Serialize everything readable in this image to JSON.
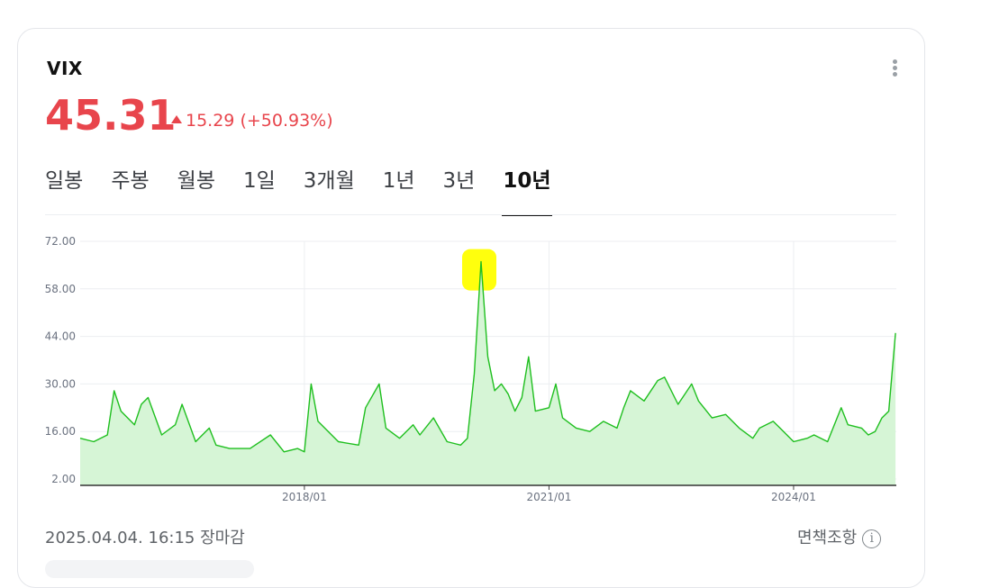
{
  "header": {
    "ticker": "VIX",
    "price": "45.31",
    "change": "15.29",
    "change_pct": "(+50.93%)",
    "menu_icon": "kebab-menu-icon"
  },
  "tabs": [
    {
      "label": "일봉",
      "active": false
    },
    {
      "label": "주봉",
      "active": false
    },
    {
      "label": "월봉",
      "active": false
    },
    {
      "label": "1일",
      "active": false
    },
    {
      "label": "3개월",
      "active": false
    },
    {
      "label": "1년",
      "active": false
    },
    {
      "label": "3년",
      "active": false
    },
    {
      "label": "10년",
      "active": true
    }
  ],
  "footer": {
    "timestamp": "2025.04.04. 16:15 장마감",
    "disclaimer": "면책조항",
    "info_icon": "i"
  },
  "colors": {
    "price_up": "#e8454c",
    "line": "#1fbf1f",
    "area": "#d6f5d6",
    "highlight": "#ffff00"
  },
  "chart_data": {
    "type": "area",
    "ylim": [
      2,
      72
    ],
    "yticks": [
      "72.00",
      "58.00",
      "44.00",
      "30.00",
      "16.00",
      "2.00"
    ],
    "xticks": [
      "2018/01",
      "2021/01",
      "2024/01"
    ],
    "grid": true,
    "highlight_point": {
      "x": "2020/03",
      "y": 66
    },
    "series": [
      {
        "x": [
          "2015/04",
          "2015/06",
          "2015/08",
          "2015/09",
          "2015/10",
          "2015/12",
          "2016/01",
          "2016/02",
          "2016/04",
          "2016/06",
          "2016/07",
          "2016/09",
          "2016/11",
          "2016/12",
          "2017/02",
          "2017/05",
          "2017/08",
          "2017/10",
          "2017/12",
          "2018/01",
          "2018/02",
          "2018/03",
          "2018/04",
          "2018/06",
          "2018/09",
          "2018/10",
          "2018/12",
          "2019/01",
          "2019/03",
          "2019/05",
          "2019/06",
          "2019/08",
          "2019/10",
          "2019/12",
          "2020/01",
          "2020/02",
          "2020/03",
          "2020/04",
          "2020/05",
          "2020/06",
          "2020/07",
          "2020/08",
          "2020/09",
          "2020/10",
          "2020/11",
          "2021/01",
          "2021/02",
          "2021/03",
          "2021/05",
          "2021/07",
          "2021/09",
          "2021/11",
          "2021/12",
          "2022/01",
          "2022/03",
          "2022/05",
          "2022/06",
          "2022/08",
          "2022/10",
          "2022/11",
          "2023/01",
          "2023/03",
          "2023/05",
          "2023/07",
          "2023/08",
          "2023/10",
          "2023/11",
          "2024/01",
          "2024/03",
          "2024/04",
          "2024/06",
          "2024/08",
          "2024/09",
          "2024/11",
          "2024/12",
          "2025/01",
          "2025/02",
          "2025/03",
          "2025/04"
        ],
        "values": [
          14,
          13,
          15,
          28,
          22,
          18,
          24,
          26,
          15,
          18,
          24,
          13,
          17,
          12,
          11,
          11,
          15,
          10,
          11,
          10,
          30,
          19,
          17,
          13,
          12,
          23,
          30,
          17,
          14,
          18,
          15,
          20,
          13,
          12,
          14,
          33,
          66,
          38,
          28,
          30,
          27,
          22,
          26,
          38,
          22,
          23,
          30,
          20,
          17,
          16,
          19,
          17,
          23,
          28,
          25,
          31,
          32,
          24,
          30,
          25,
          20,
          21,
          17,
          14,
          17,
          19,
          17,
          13,
          14,
          15,
          13,
          23,
          18,
          17,
          15,
          16,
          20,
          22,
          45
        ]
      }
    ]
  }
}
